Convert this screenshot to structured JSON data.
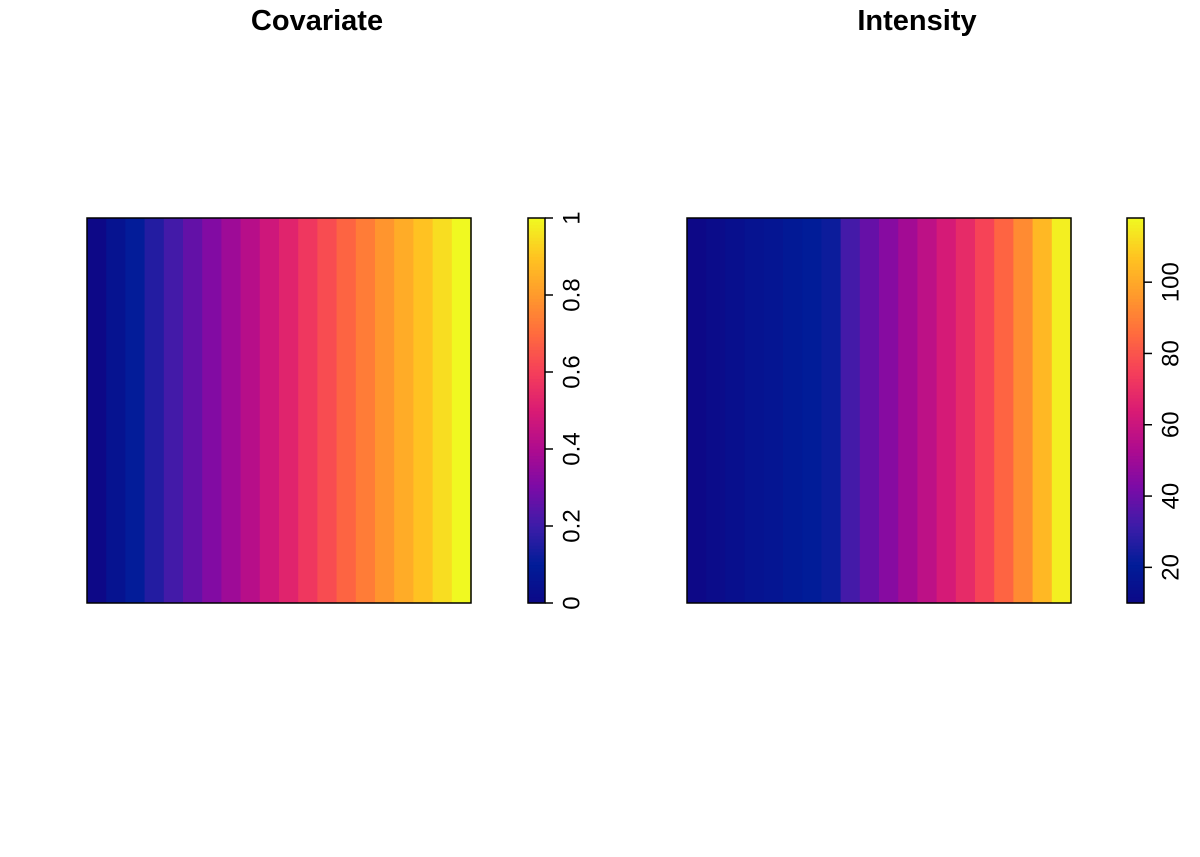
{
  "chart_data": [
    {
      "type": "heatmap",
      "title": "Covariate",
      "columns": 20,
      "values": [
        0.0,
        0.0526,
        0.1053,
        0.1579,
        0.2105,
        0.2632,
        0.3158,
        0.3684,
        0.4211,
        0.4737,
        0.5263,
        0.5789,
        0.6316,
        0.6842,
        0.7368,
        0.7895,
        0.8421,
        0.8947,
        0.9474,
        1.0
      ],
      "colorbar": {
        "min": 0,
        "max": 1,
        "ticks": [
          "0",
          "0.2",
          "0.4",
          "0.6",
          "0.8",
          "1"
        ],
        "tick_values": [
          0,
          0.2,
          0.4,
          0.6,
          0.8,
          1
        ]
      },
      "xlabel": "",
      "ylabel": ""
    },
    {
      "type": "heatmap",
      "title": "Intensity",
      "columns": 20,
      "values": [
        10,
        12,
        14,
        16,
        17,
        19,
        21,
        23,
        33,
        39,
        45,
        51,
        57,
        63,
        69,
        76,
        84,
        93,
        104,
        116
      ],
      "colorbar": {
        "min": 10,
        "max": 118,
        "ticks": [
          "20",
          "40",
          "60",
          "80",
          "100"
        ],
        "tick_values": [
          20,
          40,
          60,
          80,
          100
        ]
      },
      "xlabel": "",
      "ylabel": ""
    }
  ],
  "colors": {
    "palette": [
      "#0D0887",
      "#001C98",
      "#3C1CA8",
      "#7A0BA7",
      "#AE0B8F",
      "#D91B74",
      "#F53E5A",
      "#FF6B3E",
      "#FF9A2C",
      "#FFC421",
      "#F0F921"
    ],
    "frame": "#000000",
    "background": "#FFFFFF"
  }
}
